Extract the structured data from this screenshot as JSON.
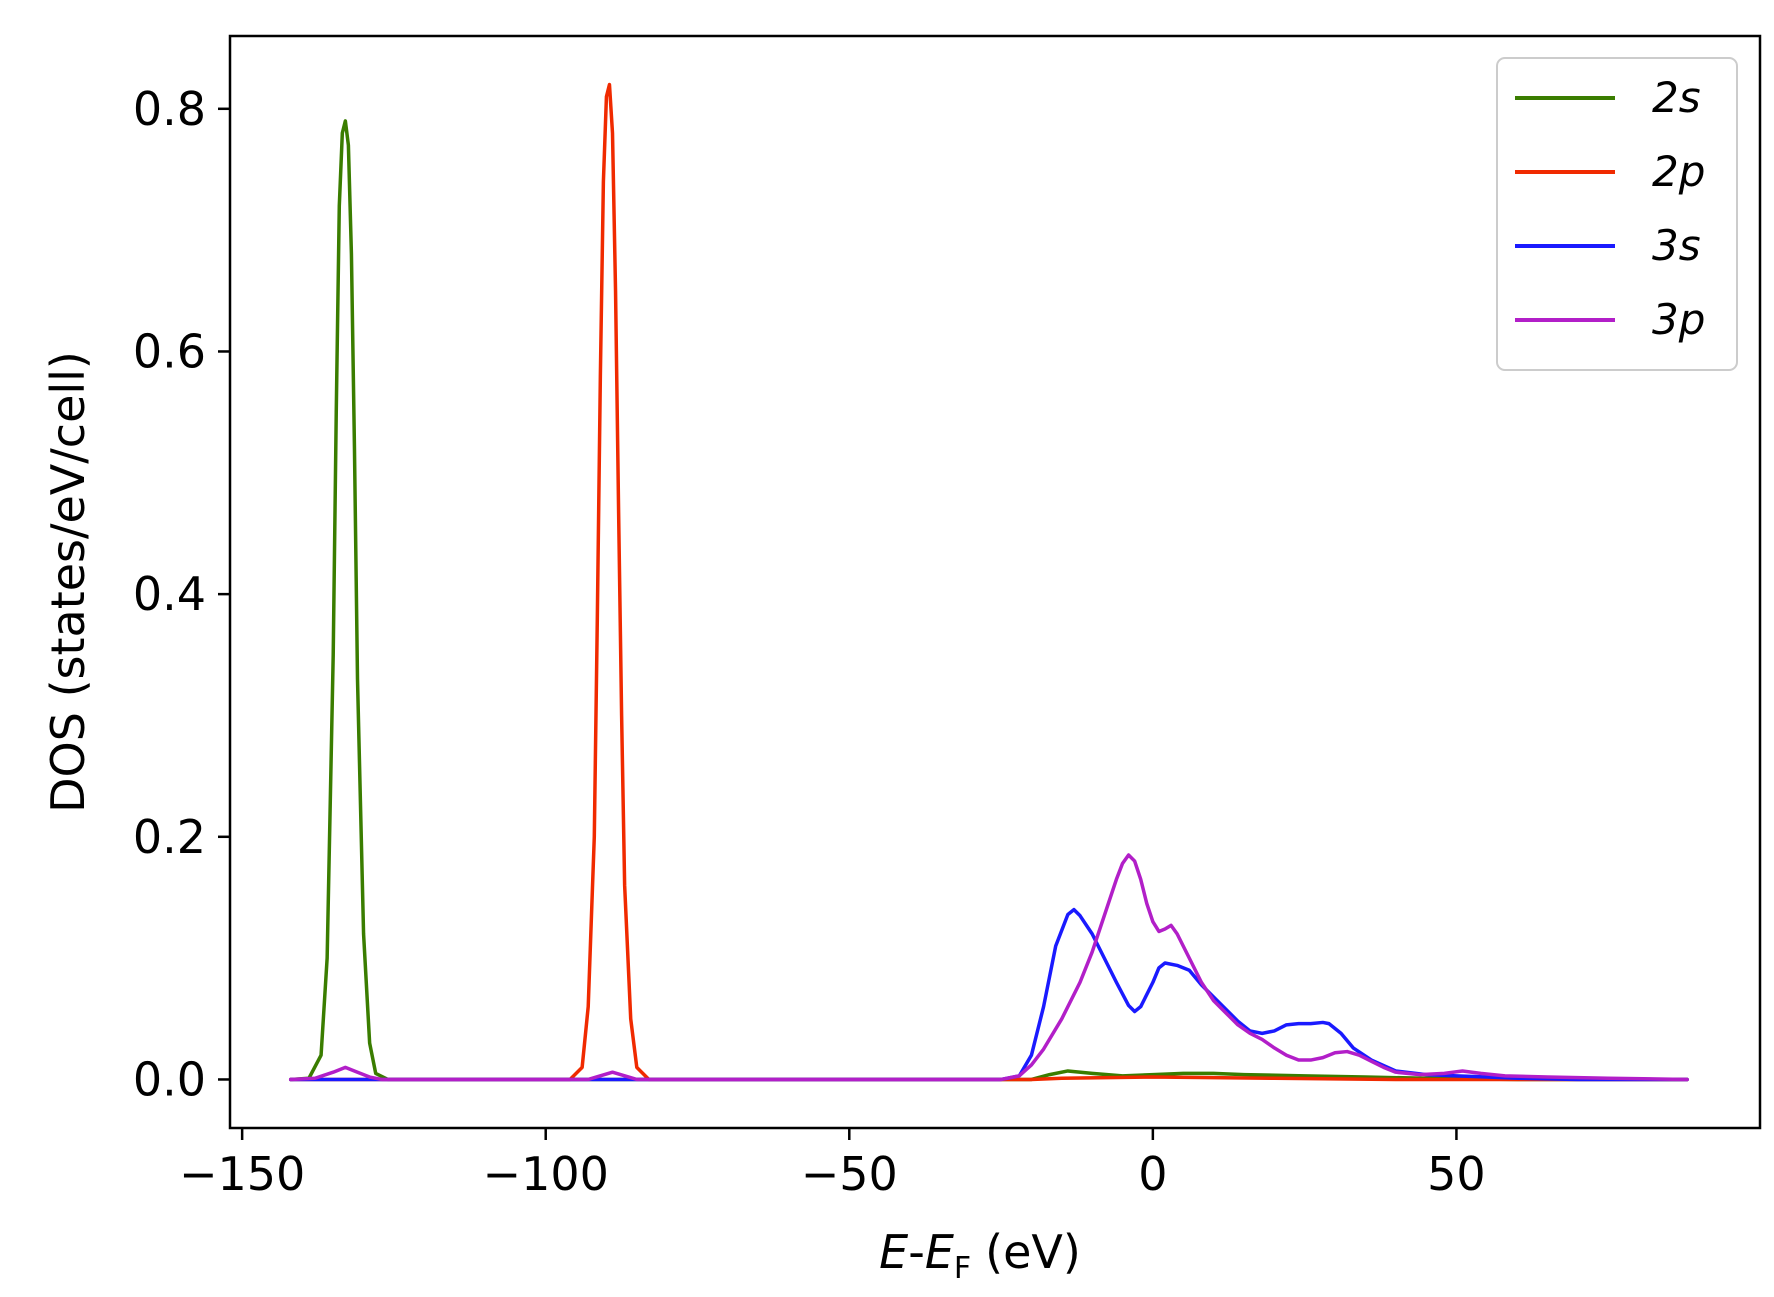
{
  "chart_data": {
    "type": "line",
    "title": "",
    "xlabel": {
      "E": "E",
      "dash": "-",
      "Ef_main": "E",
      "Ef_sub": "F",
      "unit": "(eV)"
    },
    "ylabel": "DOS (states/eV/cell)",
    "xlim": [
      -152,
      100
    ],
    "ylim": [
      -0.04,
      0.86
    ],
    "x_ticks": [
      -150,
      -100,
      -50,
      0,
      50
    ],
    "x_tick_labels": [
      "−150",
      "−100",
      "−50",
      "0",
      "50"
    ],
    "y_ticks": [
      0.0,
      0.2,
      0.4,
      0.6,
      0.8
    ],
    "y_tick_labels": [
      "0.0",
      "0.2",
      "0.4",
      "0.6",
      "0.8"
    ],
    "grid": false,
    "legend_position": "top-right",
    "series": [
      {
        "name": "2s",
        "color": "#3a7d00",
        "points": [
          [
            -142,
            0
          ],
          [
            -139,
            0.001
          ],
          [
            -137,
            0.02
          ],
          [
            -136,
            0.1
          ],
          [
            -135,
            0.35
          ],
          [
            -134.5,
            0.55
          ],
          [
            -134,
            0.72
          ],
          [
            -133.5,
            0.78
          ],
          [
            -133,
            0.79
          ],
          [
            -132.5,
            0.77
          ],
          [
            -132,
            0.68
          ],
          [
            -131.5,
            0.52
          ],
          [
            -131,
            0.33
          ],
          [
            -130,
            0.12
          ],
          [
            -129,
            0.03
          ],
          [
            -128,
            0.005
          ],
          [
            -126,
            0
          ],
          [
            -20,
            0
          ],
          [
            -17,
            0.004
          ],
          [
            -14,
            0.007
          ],
          [
            -10,
            0.005
          ],
          [
            -5,
            0.003
          ],
          [
            0,
            0.004
          ],
          [
            5,
            0.005
          ],
          [
            10,
            0.005
          ],
          [
            15,
            0.004
          ],
          [
            25,
            0.003
          ],
          [
            35,
            0.002
          ],
          [
            45,
            0.001
          ],
          [
            60,
            0
          ],
          [
            88,
            0
          ]
        ]
      },
      {
        "name": "2p",
        "color": "#f02a00",
        "points": [
          [
            -142,
            0
          ],
          [
            -96,
            0
          ],
          [
            -94,
            0.01
          ],
          [
            -93,
            0.06
          ],
          [
            -92,
            0.2
          ],
          [
            -91.5,
            0.38
          ],
          [
            -91,
            0.58
          ],
          [
            -90.5,
            0.74
          ],
          [
            -90,
            0.81
          ],
          [
            -89.5,
            0.82
          ],
          [
            -89,
            0.78
          ],
          [
            -88.5,
            0.65
          ],
          [
            -88,
            0.47
          ],
          [
            -87.5,
            0.3
          ],
          [
            -87,
            0.16
          ],
          [
            -86,
            0.05
          ],
          [
            -85,
            0.01
          ],
          [
            -83,
            0
          ],
          [
            -20,
            0
          ],
          [
            -15,
            0.001
          ],
          [
            0,
            0.002
          ],
          [
            20,
            0.001
          ],
          [
            40,
            0
          ],
          [
            88,
            0
          ]
        ]
      },
      {
        "name": "3s",
        "color": "#1a1aff",
        "points": [
          [
            -142,
            0
          ],
          [
            -25,
            0
          ],
          [
            -22,
            0.003
          ],
          [
            -20,
            0.02
          ],
          [
            -18,
            0.06
          ],
          [
            -16,
            0.11
          ],
          [
            -14,
            0.136
          ],
          [
            -13,
            0.14
          ],
          [
            -12,
            0.135
          ],
          [
            -10,
            0.12
          ],
          [
            -8,
            0.1
          ],
          [
            -6,
            0.08
          ],
          [
            -4,
            0.061
          ],
          [
            -3,
            0.056
          ],
          [
            -2,
            0.06
          ],
          [
            0,
            0.08
          ],
          [
            1,
            0.092
          ],
          [
            2,
            0.096
          ],
          [
            4,
            0.094
          ],
          [
            6,
            0.09
          ],
          [
            8,
            0.078
          ],
          [
            10,
            0.068
          ],
          [
            12,
            0.058
          ],
          [
            14,
            0.048
          ],
          [
            16,
            0.04
          ],
          [
            18,
            0.038
          ],
          [
            20,
            0.04
          ],
          [
            22,
            0.045
          ],
          [
            24,
            0.046
          ],
          [
            26,
            0.046
          ],
          [
            28,
            0.047
          ],
          [
            29,
            0.046
          ],
          [
            31,
            0.038
          ],
          [
            33,
            0.026
          ],
          [
            36,
            0.016
          ],
          [
            40,
            0.007
          ],
          [
            45,
            0.004
          ],
          [
            50,
            0.003
          ],
          [
            55,
            0.002
          ],
          [
            60,
            0.001
          ],
          [
            70,
            0
          ],
          [
            88,
            0
          ]
        ]
      },
      {
        "name": "3p",
        "color": "#b21fc8",
        "points": [
          [
            -142,
            0
          ],
          [
            -138,
            0.001
          ],
          [
            -135,
            0.006
          ],
          [
            -133,
            0.01
          ],
          [
            -131,
            0.006
          ],
          [
            -129,
            0.002
          ],
          [
            -127,
            0
          ],
          [
            -93,
            0
          ],
          [
            -91,
            0.003
          ],
          [
            -89,
            0.006
          ],
          [
            -87,
            0.003
          ],
          [
            -85,
            0
          ],
          [
            -25,
            0
          ],
          [
            -22,
            0.003
          ],
          [
            -20,
            0.012
          ],
          [
            -18,
            0.025
          ],
          [
            -15,
            0.05
          ],
          [
            -12,
            0.08
          ],
          [
            -10,
            0.105
          ],
          [
            -8,
            0.135
          ],
          [
            -6,
            0.165
          ],
          [
            -5,
            0.178
          ],
          [
            -4,
            0.185
          ],
          [
            -3,
            0.18
          ],
          [
            -2,
            0.165
          ],
          [
            -1,
            0.145
          ],
          [
            0,
            0.13
          ],
          [
            1,
            0.122
          ],
          [
            2,
            0.124
          ],
          [
            3,
            0.127
          ],
          [
            4,
            0.12
          ],
          [
            6,
            0.1
          ],
          [
            8,
            0.08
          ],
          [
            10,
            0.065
          ],
          [
            12,
            0.055
          ],
          [
            14,
            0.045
          ],
          [
            16,
            0.038
          ],
          [
            18,
            0.033
          ],
          [
            20,
            0.026
          ],
          [
            22,
            0.02
          ],
          [
            24,
            0.016
          ],
          [
            26,
            0.016
          ],
          [
            28,
            0.018
          ],
          [
            30,
            0.022
          ],
          [
            32,
            0.023
          ],
          [
            34,
            0.02
          ],
          [
            36,
            0.015
          ],
          [
            38,
            0.01
          ],
          [
            40,
            0.006
          ],
          [
            44,
            0.004
          ],
          [
            48,
            0.005
          ],
          [
            51,
            0.007
          ],
          [
            54,
            0.005
          ],
          [
            58,
            0.003
          ],
          [
            65,
            0.002
          ],
          [
            75,
            0.001
          ],
          [
            88,
            0
          ]
        ]
      }
    ]
  }
}
